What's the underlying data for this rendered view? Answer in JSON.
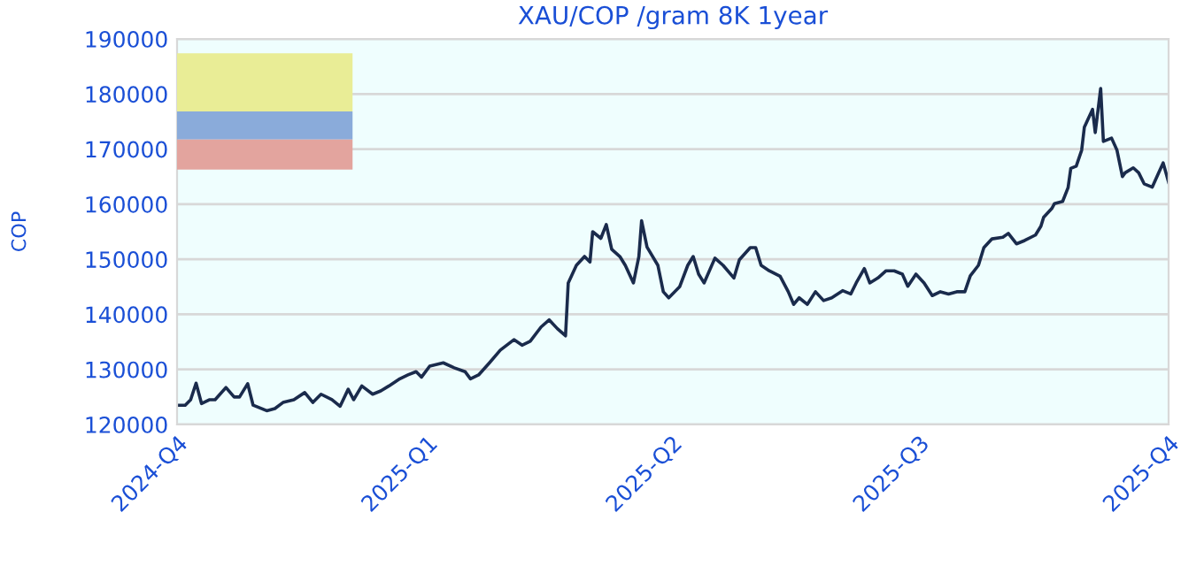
{
  "chart_data": {
    "type": "line",
    "title": "XAU/COP /gram 8K 1year",
    "ylabel": "COP",
    "x": [
      "2024-10-01",
      "2024-10-04",
      "2024-10-06",
      "2024-10-08",
      "2024-10-10",
      "2024-10-13",
      "2024-10-15",
      "2024-10-19",
      "2024-10-22",
      "2024-10-24",
      "2024-10-27",
      "2024-10-29",
      "2024-11-01",
      "2024-11-03",
      "2024-11-06",
      "2024-11-09",
      "2024-11-13",
      "2024-11-17",
      "2024-11-20",
      "2024-11-23",
      "2024-11-27",
      "2024-11-30",
      "2024-12-03",
      "2024-12-05",
      "2024-12-08",
      "2024-12-12",
      "2024-12-15",
      "2024-12-18",
      "2024-12-22",
      "2024-12-25",
      "2024-12-28",
      "2024-12-30",
      "2025-01-02",
      "2025-01-07",
      "2025-01-11",
      "2025-01-15",
      "2025-01-17",
      "2025-01-20",
      "2025-01-24",
      "2025-01-28",
      "2025-02-02",
      "2025-02-05",
      "2025-02-08",
      "2025-02-12",
      "2025-02-15",
      "2025-02-18",
      "2025-02-21",
      "2025-02-22",
      "2025-02-25",
      "2025-02-28",
      "2025-03-02",
      "2025-03-03",
      "2025-03-06",
      "2025-03-08",
      "2025-03-10",
      "2025-03-13",
      "2025-03-15",
      "2025-03-18",
      "2025-03-20",
      "2025-03-21",
      "2025-03-23",
      "2025-03-27",
      "2025-03-29",
      "2025-03-31",
      "2025-04-04",
      "2025-04-07",
      "2025-04-09",
      "2025-04-11",
      "2025-04-13",
      "2025-04-17",
      "2025-04-20",
      "2025-04-24",
      "2025-04-26",
      "2025-04-30",
      "2025-05-02",
      "2025-05-04",
      "2025-05-07",
      "2025-05-11",
      "2025-05-14",
      "2025-05-16",
      "2025-05-18",
      "2025-05-21",
      "2025-05-24",
      "2025-05-27",
      "2025-05-30",
      "2025-06-03",
      "2025-06-06",
      "2025-06-08",
      "2025-06-11",
      "2025-06-13",
      "2025-06-16",
      "2025-06-19",
      "2025-06-22",
      "2025-06-25",
      "2025-06-27",
      "2025-06-30",
      "2025-07-03",
      "2025-07-06",
      "2025-07-09",
      "2025-07-12",
      "2025-07-15",
      "2025-07-18",
      "2025-07-20",
      "2025-07-23",
      "2025-07-25",
      "2025-07-28",
      "2025-08-01",
      "2025-08-03",
      "2025-08-06",
      "2025-08-09",
      "2025-08-13",
      "2025-08-15",
      "2025-08-16",
      "2025-08-19",
      "2025-08-20",
      "2025-08-23",
      "2025-08-25",
      "2025-08-26",
      "2025-08-28",
      "2025-08-30",
      "2025-08-31",
      "2025-09-03",
      "2025-09-04",
      "2025-09-06",
      "2025-09-07",
      "2025-09-10",
      "2025-09-12",
      "2025-09-14",
      "2025-09-15",
      "2025-09-18",
      "2025-09-20",
      "2025-09-22",
      "2025-09-25",
      "2025-09-27",
      "2025-09-29",
      "2025-10-01"
    ],
    "series": [
      {
        "color": "#1a2b4c",
        "values": [
          123500,
          123500,
          124500,
          127500,
          123800,
          124500,
          124500,
          126700,
          125000,
          125000,
          127400,
          123500,
          122900,
          122500,
          122900,
          124000,
          124500,
          125800,
          124000,
          125500,
          124500,
          123300,
          126400,
          124500,
          127000,
          125500,
          126100,
          127000,
          128300,
          129000,
          129600,
          128600,
          130600,
          131200,
          130300,
          129600,
          128300,
          129000,
          131200,
          133500,
          135400,
          134400,
          135100,
          137700,
          139000,
          137400,
          136100,
          145700,
          148900,
          150500,
          149500,
          155000,
          153800,
          156300,
          151800,
          150500,
          148900,
          145700,
          150500,
          157000,
          152200,
          148900,
          144100,
          143000,
          145000,
          148900,
          150500,
          147300,
          145700,
          150200,
          148900,
          146600,
          149900,
          152100,
          152100,
          148900,
          147900,
          146900,
          144100,
          141800,
          143000,
          141800,
          144100,
          142500,
          143000,
          144300,
          143700,
          145700,
          148300,
          145700,
          146600,
          147900,
          147900,
          147300,
          145100,
          147300,
          145700,
          143400,
          144100,
          143700,
          144100,
          144100,
          147000,
          148900,
          152100,
          153700,
          154000,
          154700,
          152800,
          153400,
          154400,
          156000,
          157600,
          159200,
          160100,
          160500,
          163000,
          166500,
          166900,
          169800,
          174000,
          177200,
          173000,
          181000,
          171400,
          172000,
          169800,
          165000,
          165700,
          166600,
          165700,
          163700,
          163100,
          165300,
          167500,
          164000
        ]
      }
    ],
    "ylim": [
      120000,
      190000
    ],
    "yticks": [
      120000,
      130000,
      140000,
      150000,
      160000,
      170000,
      180000,
      190000
    ],
    "xlim": [
      "2024-10-01",
      "2025-10-01"
    ],
    "xticks": [
      {
        "value": "2024-10-01",
        "label": "2024-Q4"
      },
      {
        "value": "2025-01-01",
        "label": "2025-Q1"
      },
      {
        "value": "2025-04-01",
        "label": "2025-Q2"
      },
      {
        "value": "2025-07-01",
        "label": "2025-Q3"
      },
      {
        "value": "2025-10-01",
        "label": "2025-Q4"
      }
    ],
    "grid": "y",
    "legend": false,
    "marker": "none",
    "line_style": "solid"
  }
}
